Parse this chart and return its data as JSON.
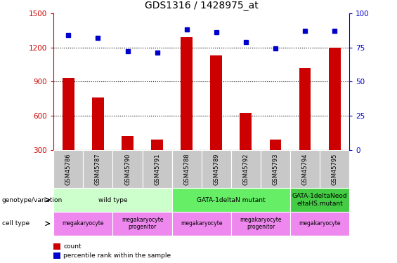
{
  "title": "GDS1316 / 1428975_at",
  "samples": [
    "GSM45786",
    "GSM45787",
    "GSM45790",
    "GSM45791",
    "GSM45788",
    "GSM45789",
    "GSM45792",
    "GSM45793",
    "GSM45794",
    "GSM45795"
  ],
  "counts": [
    930,
    760,
    420,
    390,
    1290,
    1130,
    625,
    390,
    1020,
    1200
  ],
  "percentiles": [
    84,
    82,
    72,
    71,
    88,
    86,
    79,
    74,
    87,
    87
  ],
  "ylim_left": [
    300,
    1500
  ],
  "ylim_right": [
    0,
    100
  ],
  "yticks_left": [
    300,
    600,
    900,
    1200,
    1500
  ],
  "yticks_right": [
    0,
    25,
    50,
    75,
    100
  ],
  "bar_color": "#cc0000",
  "dot_color": "#0000cc",
  "sample_box_color": "#c8c8c8",
  "genotype_groups": [
    {
      "label": "wild type",
      "start": 0,
      "end": 4,
      "color": "#ccffcc"
    },
    {
      "label": "GATA-1deltaN mutant",
      "start": 4,
      "end": 8,
      "color": "#66ee66"
    },
    {
      "label": "GATA-1deltaNeod\neltaHS.mutant",
      "start": 8,
      "end": 10,
      "color": "#44cc44"
    }
  ],
  "cell_type_groups": [
    {
      "label": "megakaryocyte",
      "start": 0,
      "end": 2,
      "color": "#ee88ee"
    },
    {
      "label": "megakaryocyte\nprogenitor",
      "start": 2,
      "end": 4,
      "color": "#ee88ee"
    },
    {
      "label": "megakaryocyte",
      "start": 4,
      "end": 6,
      "color": "#ee88ee"
    },
    {
      "label": "megakaryocyte\nprogenitor",
      "start": 6,
      "end": 8,
      "color": "#ee88ee"
    },
    {
      "label": "megakaryocyte",
      "start": 8,
      "end": 10,
      "color": "#ee88ee"
    }
  ],
  "left_tick_color": "#cc0000",
  "right_tick_color": "#0000cc",
  "grid_yticks": [
    600,
    900,
    1200
  ],
  "bar_width": 0.4
}
